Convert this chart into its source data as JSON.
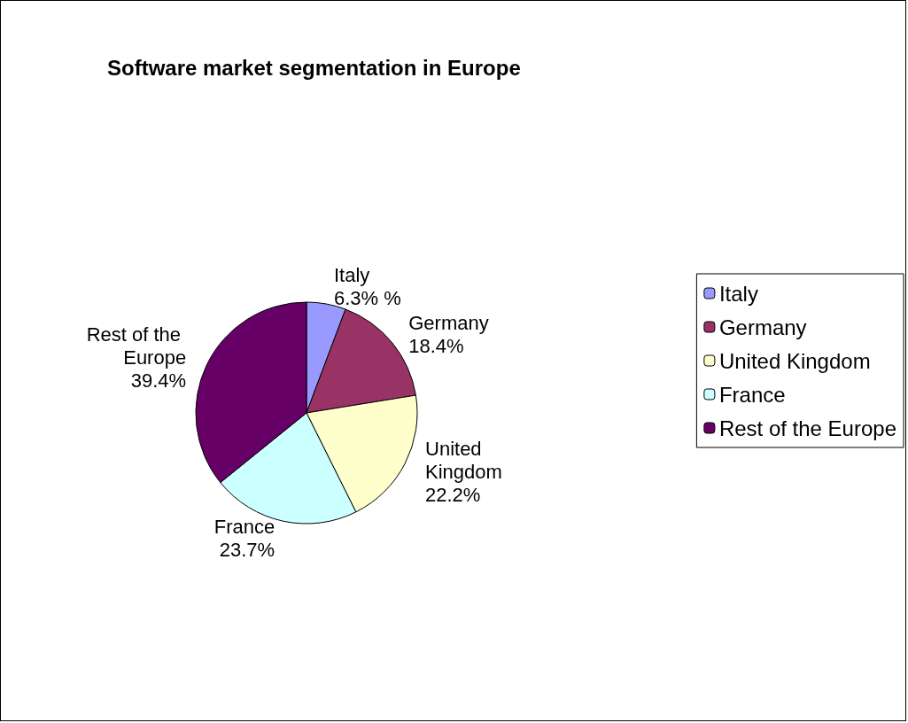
{
  "chart_data": {
    "type": "pie",
    "title": "Software market segmentation in Europe",
    "categories": [
      "Italy",
      "Germany",
      "United Kingdom",
      "France",
      "Rest of the Europe"
    ],
    "values": [
      6.3,
      18.4,
      22.2,
      23.7,
      39.4
    ],
    "value_labels": [
      "6.3% %",
      "18.4%",
      "22.2%",
      "23.7%",
      "39.4%"
    ],
    "colors": [
      "#9999ff",
      "#993366",
      "#ffffcc",
      "#ccffff",
      "#660066"
    ],
    "legend": "right"
  }
}
